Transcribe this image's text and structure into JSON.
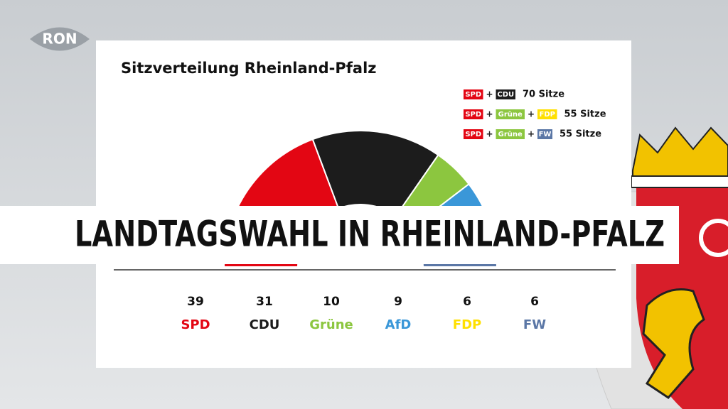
{
  "logo": "RON",
  "headline": "LANDTAGSWAHL IN RHEINLAND-PFALZ",
  "chart_data": {
    "type": "semicircle",
    "title": "Sitzverteilung Rheinland-Pfalz",
    "categories": [
      "SPD",
      "CDU",
      "Grüne",
      "AfD",
      "FDP",
      "FW"
    ],
    "values": [
      39,
      31,
      10,
      9,
      6,
      6
    ],
    "colors": [
      "#e30613",
      "#1c1c1c",
      "#8cc63f",
      "#3a97d8",
      "#ffe000",
      "#5b77a6"
    ],
    "coalitions": [
      {
        "parties": [
          "SPD",
          "CDU"
        ],
        "colors": [
          "#e30613",
          "#1c1c1c"
        ],
        "seats_label": "70 Sitze"
      },
      {
        "parties": [
          "SPD",
          "Grüne",
          "FDP"
        ],
        "colors": [
          "#e30613",
          "#8cc63f",
          "#ffe000"
        ],
        "seats_label": "55 Sitze"
      },
      {
        "parties": [
          "SPD",
          "Grüne",
          "FW"
        ],
        "colors": [
          "#e30613",
          "#8cc63f",
          "#5b77a6"
        ],
        "seats_label": "55 Sitze"
      }
    ],
    "separator": "+"
  }
}
